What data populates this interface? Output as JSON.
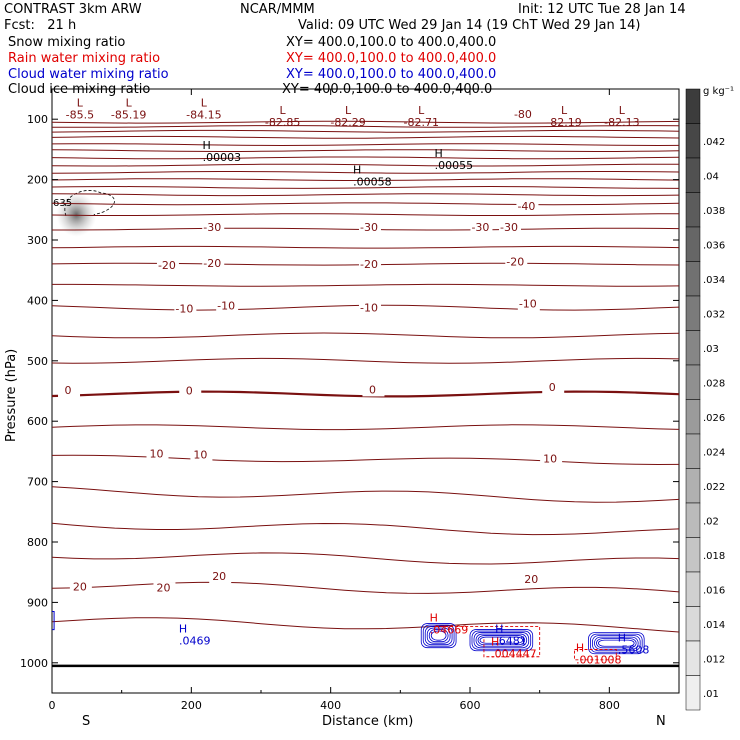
{
  "chart_data": {
    "type": "contour",
    "title": "CONTRAST  3km ARW",
    "institution": "NCAR/MMM",
    "init": "Init: 12 UTC Tue 28 Jan 14",
    "fcst": "Fcst:   21 h",
    "valid": "Valid: 09 UTC Wed 29 Jan 14 (19 ChT Wed 29 Jan 14)",
    "fields": [
      {
        "name": "Snow mixing ratio",
        "xy": "XY= 400.0,100.0 to 400.0,400.0",
        "color": "#000000"
      },
      {
        "name": "Rain water mixing ratio",
        "xy": "XY= 400.0,100.0 to 400.0,400.0",
        "color": "#e00000"
      },
      {
        "name": "Cloud water mixing ratio",
        "xy": "XY= 400.0,100.0 to 400.0,400.0",
        "color": "#0000cc"
      },
      {
        "name": "Cloud ice mixing ratio",
        "xy": "XY= 400.0,100.0 to 400.0,400.0",
        "color": "#000000"
      }
    ],
    "xlabel": "Distance (km)",
    "ylabel": "Pressure (hPa)",
    "xlim": [
      0,
      900
    ],
    "ylim": [
      1050,
      50
    ],
    "x_ticks": [
      "0",
      "200",
      "400",
      "600",
      "800"
    ],
    "y_ticks": [
      "100",
      "200",
      "300",
      "400",
      "500",
      "600",
      "700",
      "800",
      "900",
      "1000"
    ],
    "direction_left": "S",
    "direction_right": "N",
    "colorbar": {
      "units": "g kg⁻¹",
      "levels": [
        "-",
        ".042",
        ".04",
        ".038",
        ".036",
        ".034",
        ".032",
        ".03",
        ".028",
        ".026",
        ".024",
        ".022",
        ".02",
        ".018",
        ".016",
        ".014",
        ".012",
        ".01"
      ]
    },
    "temperature_contours": [
      {
        "p": 105,
        "label": "-80"
      },
      {
        "p": 112,
        "label": null
      },
      {
        "p": 120,
        "label": null
      },
      {
        "p": 130,
        "label": null
      },
      {
        "p": 142,
        "label": null
      },
      {
        "p": 152,
        "label": null
      },
      {
        "p": 164,
        "label": null
      },
      {
        "p": 176,
        "label": null
      },
      {
        "p": 188,
        "label": null
      },
      {
        "p": 200,
        "label": null
      },
      {
        "p": 213,
        "label": null
      },
      {
        "p": 225,
        "label": null
      },
      {
        "p": 240,
        "label": "-40"
      },
      {
        "p": 258,
        "label": null
      },
      {
        "p": 282,
        "label": "-30"
      },
      {
        "p": 312,
        "label": null
      },
      {
        "p": 340,
        "label": "-20"
      },
      {
        "p": 375,
        "label": null
      },
      {
        "p": 412,
        "label": "-10"
      },
      {
        "p": 458,
        "label": null
      },
      {
        "p": 500,
        "label": null
      },
      {
        "p": 555,
        "label": "0"
      },
      {
        "p": 610,
        "label": null
      },
      {
        "p": 660,
        "label": "10"
      },
      {
        "p": 715,
        "label": null
      },
      {
        "p": 770,
        "label": null
      },
      {
        "p": 820,
        "label": null
      },
      {
        "p": 870,
        "label": "20"
      },
      {
        "p": 930,
        "label": null
      }
    ],
    "contour_labels": [
      {
        "x": 250,
        "p": 415,
        "text": "-10"
      },
      {
        "x": 190,
        "p": 420,
        "text": "-10"
      },
      {
        "x": 455,
        "p": 418,
        "text": "-10"
      },
      {
        "x": 683,
        "p": 412,
        "text": "-10"
      },
      {
        "x": 230,
        "p": 345,
        "text": "-20"
      },
      {
        "x": 165,
        "p": 348,
        "text": "-20"
      },
      {
        "x": 455,
        "p": 346,
        "text": "-20"
      },
      {
        "x": 665,
        "p": 342,
        "text": "-20"
      },
      {
        "x": 230,
        "p": 285,
        "text": "-30"
      },
      {
        "x": 455,
        "p": 285,
        "text": "-30"
      },
      {
        "x": 615,
        "p": 285,
        "text": "-30"
      },
      {
        "x": 656,
        "p": 285,
        "text": "-30"
      },
      {
        "x": 681,
        "p": 250,
        "text": "-40"
      },
      {
        "x": 676,
        "p": 98,
        "text": "-80"
      },
      {
        "x": 23,
        "p": 555,
        "text": "0"
      },
      {
        "x": 197,
        "p": 556,
        "text": "0"
      },
      {
        "x": 460,
        "p": 554,
        "text": "0"
      },
      {
        "x": 718,
        "p": 550,
        "text": "0"
      },
      {
        "x": 150,
        "p": 660,
        "text": "10"
      },
      {
        "x": 213,
        "p": 662,
        "text": "10"
      },
      {
        "x": 715,
        "p": 668,
        "text": "10"
      },
      {
        "x": 40,
        "p": 880,
        "text": "20"
      },
      {
        "x": 160,
        "p": 882,
        "text": "20"
      },
      {
        "x": 240,
        "p": 863,
        "text": "20"
      },
      {
        "x": 688,
        "p": 868,
        "text": "20"
      }
    ],
    "lows": [
      {
        "x": 40,
        "p": 82,
        "value": "-85.5"
      },
      {
        "x": 110,
        "p": 82,
        "value": "-85.19"
      },
      {
        "x": 218,
        "p": 82,
        "value": "-84.15"
      },
      {
        "x": 331,
        "p": 95,
        "value": "-82.85"
      },
      {
        "x": 425,
        "p": 95,
        "value": "-82.29"
      },
      {
        "x": 530,
        "p": 95,
        "value": "-82.71"
      },
      {
        "x": 735,
        "p": 95,
        "value": "-82.19"
      },
      {
        "x": 818,
        "p": 95,
        "value": "-82.13"
      }
    ],
    "highs": [
      {
        "x": 222,
        "p": 153,
        "value": ".00003",
        "color": "#000000"
      },
      {
        "x": 555,
        "p": 166,
        "value": ".00055",
        "color": "#000000"
      },
      {
        "x": 438,
        "p": 193,
        "value": ".00058",
        "color": "#000000"
      },
      {
        "x": 188,
        "p": 953,
        "value": ".0469",
        "color": "#0000cc"
      },
      {
        "x": 642,
        "p": 953,
        "value": ".6481",
        "color": "#0000cc"
      },
      {
        "x": 818,
        "p": 968,
        "value": ".5608",
        "color": "#0000cc"
      },
      {
        "x": 548,
        "p": 935,
        "value": ".04669",
        "color": "#e00000"
      },
      {
        "x": 636,
        "p": 975,
        "value": ".004447",
        "color": "#e00000"
      },
      {
        "x": 758,
        "p": 985,
        "value": ".001008",
        "color": "#e00000"
      }
    ],
    "shaded_value_label": ".635"
  }
}
